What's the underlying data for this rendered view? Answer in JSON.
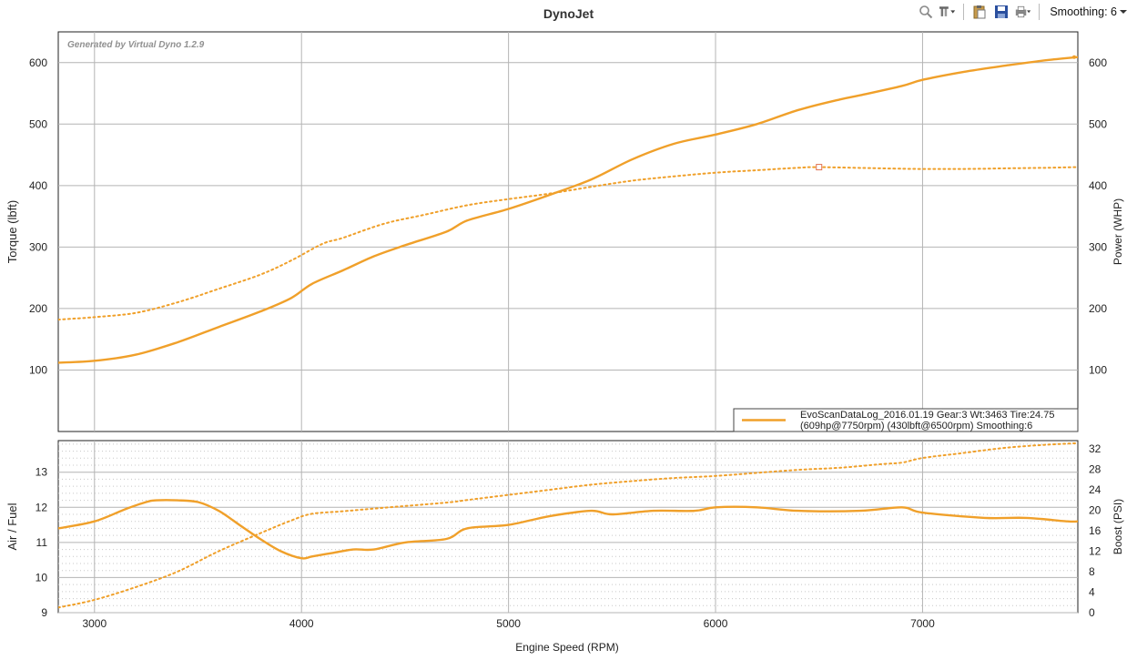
{
  "title": "DynoJet",
  "toolbar": {
    "icons": [
      "zoom-icon",
      "settings-icon",
      "paste-icon",
      "save-icon",
      "print-icon"
    ],
    "smoothing_label": "Smoothing: 6"
  },
  "accent_color": "#f0a02a",
  "chart_data": [
    {
      "type": "line",
      "watermark": "Generated by Virtual Dyno 1.2.9",
      "xlabel": "Engine Speed (RPM)",
      "ylabel": "Torque (lbft)",
      "y2label": "Power (WHP)",
      "xlim": [
        2825,
        7750
      ],
      "ylim": [
        0,
        650
      ],
      "y2lim": [
        0,
        650
      ],
      "yticks": [
        100,
        200,
        300,
        400,
        500,
        600
      ],
      "xticks": [
        3000,
        4000,
        5000,
        6000,
        7000
      ],
      "grid": true,
      "legend": {
        "position": "bottom-right",
        "line1": "EvoScanDataLog_2016.01.19 Gear:3 Wt:3463 Tire:24.75",
        "line2": "(609hp@7750rpm) (430lbft@6500rpm) Smoothing:6"
      },
      "series": [
        {
          "style": "solid",
          "axis": "y2",
          "x": [
            2825,
            3000,
            3200,
            3400,
            3600,
            3800,
            3950,
            4050,
            4200,
            4350,
            4500,
            4700,
            4800,
            5000,
            5200,
            5400,
            5600,
            5800,
            6000,
            6200,
            6400,
            6600,
            6700,
            6900,
            7000,
            7200,
            7400,
            7600,
            7750
          ],
          "values": [
            112,
            115,
            125,
            145,
            170,
            195,
            217,
            240,
            262,
            285,
            303,
            325,
            343,
            362,
            385,
            410,
            443,
            468,
            483,
            500,
            523,
            540,
            547,
            562,
            572,
            585,
            595,
            604,
            609
          ]
        },
        {
          "style": "dotted",
          "axis": "y",
          "marker_at": 6500,
          "x": [
            2825,
            3000,
            3200,
            3400,
            3600,
            3800,
            3950,
            4100,
            4200,
            4400,
            4600,
            4800,
            5000,
            5200,
            5400,
            5600,
            5800,
            6000,
            6200,
            6400,
            6500,
            6800,
            7000,
            7200,
            7400,
            7600,
            7750
          ],
          "values": [
            182,
            186,
            193,
            210,
            232,
            255,
            278,
            305,
            315,
            338,
            353,
            368,
            378,
            387,
            398,
            408,
            415,
            421,
            425,
            429,
            430,
            428,
            427,
            427,
            428,
            429,
            430
          ]
        }
      ]
    },
    {
      "type": "line",
      "ylabel": "Air / Fuel",
      "y2label": "Boost (PSI)",
      "xlabel": "Engine Speed (RPM)",
      "xlim": [
        2825,
        7750
      ],
      "ylim": [
        9,
        13.9
      ],
      "y2lim": [
        0,
        33.6
      ],
      "yticks": [
        9,
        10,
        11,
        12,
        13
      ],
      "y2ticks": [
        0,
        4,
        8,
        12,
        16,
        20,
        24,
        28,
        32
      ],
      "xticks": [
        3000,
        4000,
        5000,
        6000,
        7000
      ],
      "grid": true,
      "series": [
        {
          "style": "solid",
          "axis": "y",
          "x": [
            2825,
            3000,
            3150,
            3250,
            3300,
            3400,
            3500,
            3600,
            3700,
            3800,
            3900,
            4000,
            4050,
            4150,
            4250,
            4350,
            4500,
            4700,
            4800,
            5000,
            5200,
            5400,
            5500,
            5700,
            5900,
            6000,
            6200,
            6400,
            6700,
            6900,
            7000,
            7300,
            7500,
            7700,
            7750
          ],
          "values": [
            11.4,
            11.6,
            11.95,
            12.15,
            12.2,
            12.2,
            12.15,
            11.9,
            11.5,
            11.1,
            10.75,
            10.55,
            10.6,
            10.7,
            10.8,
            10.8,
            11.0,
            11.1,
            11.4,
            11.5,
            11.75,
            11.9,
            11.8,
            11.9,
            11.9,
            12.0,
            12.0,
            11.9,
            11.9,
            12.0,
            11.85,
            11.7,
            11.7,
            11.6,
            11.6
          ]
        },
        {
          "style": "dotted",
          "axis": "y2",
          "x": [
            2825,
            3000,
            3200,
            3400,
            3600,
            3800,
            3950,
            4050,
            4200,
            4400,
            4700,
            4800,
            5000,
            5200,
            5400,
            5600,
            5800,
            6000,
            6200,
            6400,
            6600,
            6800,
            6900,
            7000,
            7200,
            7400,
            7600,
            7750
          ],
          "values": [
            1.0,
            2.5,
            5.0,
            8.0,
            12.0,
            15.5,
            18.0,
            19.3,
            19.8,
            20.5,
            21.5,
            22.0,
            23.0,
            24.0,
            25.0,
            25.7,
            26.3,
            26.7,
            27.3,
            27.9,
            28.3,
            29.0,
            29.3,
            30.2,
            31.2,
            32.2,
            32.8,
            33.1
          ]
        }
      ]
    }
  ]
}
